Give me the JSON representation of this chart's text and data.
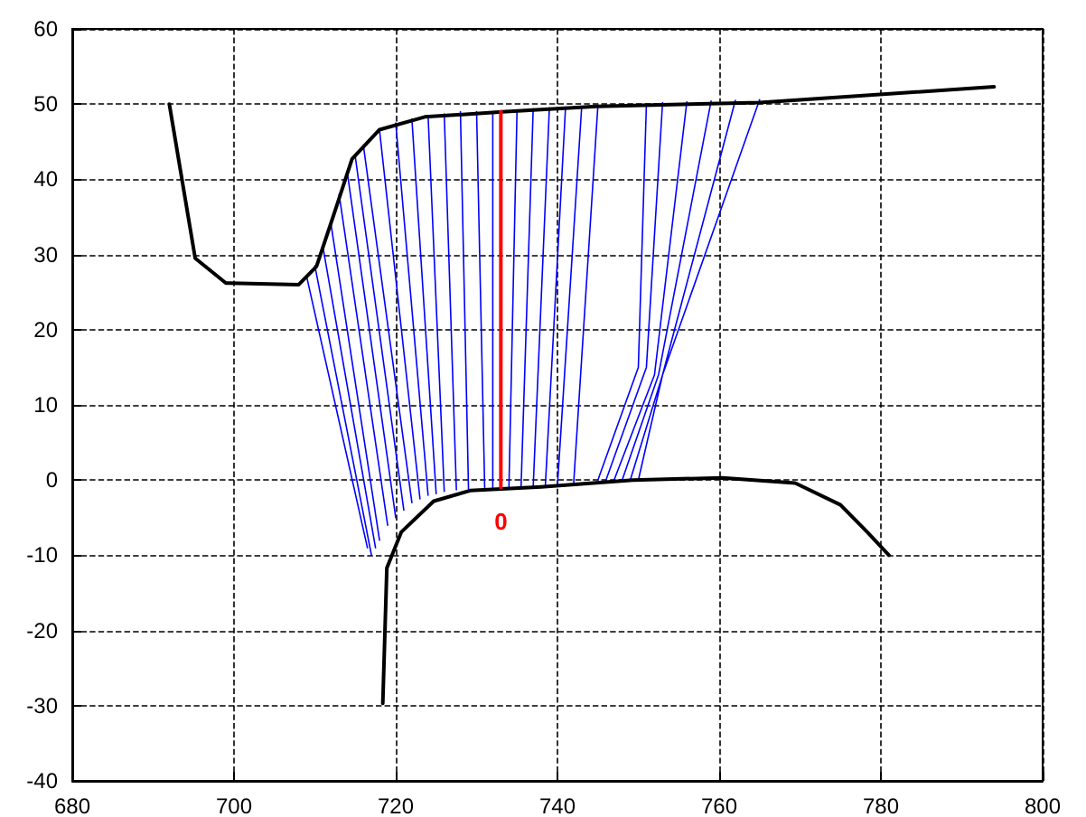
{
  "chart_data": {
    "type": "line",
    "xlim": [
      680,
      800
    ],
    "xticks": [
      680,
      700,
      720,
      740,
      760,
      780,
      800
    ],
    "ylim": [
      -40,
      60
    ],
    "yticks": [
      -40,
      -30,
      -20,
      -10,
      0,
      10,
      20,
      30,
      40,
      50,
      60
    ],
    "grid": true,
    "marker": "none",
    "line_style": "solid",
    "annotations": [
      "0"
    ],
    "series": [
      {
        "color": "#0000ff",
        "x": [
          709,
          716.5,
          null,
          710,
          717,
          null,
          711,
          717.5,
          null,
          712,
          718,
          null,
          713,
          719,
          null,
          714,
          720,
          null,
          715,
          721,
          null,
          716,
          722,
          null,
          718,
          723,
          null,
          720,
          724,
          null,
          722,
          725,
          null,
          724,
          726,
          null,
          726,
          727.5,
          null,
          728,
          729,
          null,
          730,
          731,
          null,
          732,
          732,
          null,
          735,
          734,
          null,
          737,
          735.5,
          null,
          739,
          737,
          null,
          741,
          738.5,
          null,
          743,
          740,
          null,
          745,
          742,
          null,
          745,
          750,
          751,
          null,
          746,
          751,
          753,
          null,
          747,
          752,
          756,
          null,
          748,
          752.5,
          759,
          null,
          749,
          753,
          762,
          null,
          750,
          753,
          765
        ],
        "values": [
          27,
          -9,
          null,
          28.5,
          -10,
          null,
          31,
          -9,
          null,
          34,
          -8,
          null,
          38,
          -6,
          null,
          41,
          -5,
          null,
          43,
          -4,
          null,
          44.5,
          -3,
          null,
          46.5,
          -2.5,
          null,
          47.5,
          -2,
          null,
          48,
          -1.8,
          null,
          48.5,
          -1.5,
          null,
          48.7,
          -1.3,
          null,
          49,
          -1.2,
          null,
          49,
          -1,
          null,
          49,
          -1,
          null,
          49.2,
          -1,
          null,
          49.4,
          -0.9,
          null,
          49.5,
          -0.9,
          null,
          49.6,
          -0.8,
          null,
          49.7,
          -0.7,
          null,
          49.8,
          -0.5,
          null,
          0,
          15,
          50,
          null,
          0,
          15,
          50.2,
          null,
          0,
          14,
          50.3,
          null,
          0,
          14,
          50.4,
          null,
          0,
          14,
          50.5,
          null,
          0,
          14,
          50.6
        ]
      },
      {
        "color": "#000000",
        "x": [
          692,
          695.2,
          699,
          708,
          710.2,
          712.4,
          714.6,
          718,
          723.6,
          733.6,
          744.8,
          765,
          794
        ],
        "values": [
          50,
          29.5,
          26.2,
          26,
          28.4,
          35.5,
          42.7,
          46.6,
          48.3,
          49,
          49.7,
          50.2,
          52.3
        ]
      },
      {
        "color": "#000000",
        "x": [
          718.4,
          718.9,
          720.7,
          724.7,
          729.2,
          738,
          749.3,
          760.4,
          769.4,
          775,
          778.3,
          781
        ],
        "values": [
          -29.7,
          -11.7,
          -6.9,
          -2.8,
          -1.4,
          -0.9,
          0,
          0.3,
          -0.4,
          -3.3,
          -6.9,
          -10
        ]
      },
      {
        "color": "#ff0000",
        "x": [
          733,
          733
        ],
        "values": [
          -1,
          49
        ]
      }
    ]
  }
}
